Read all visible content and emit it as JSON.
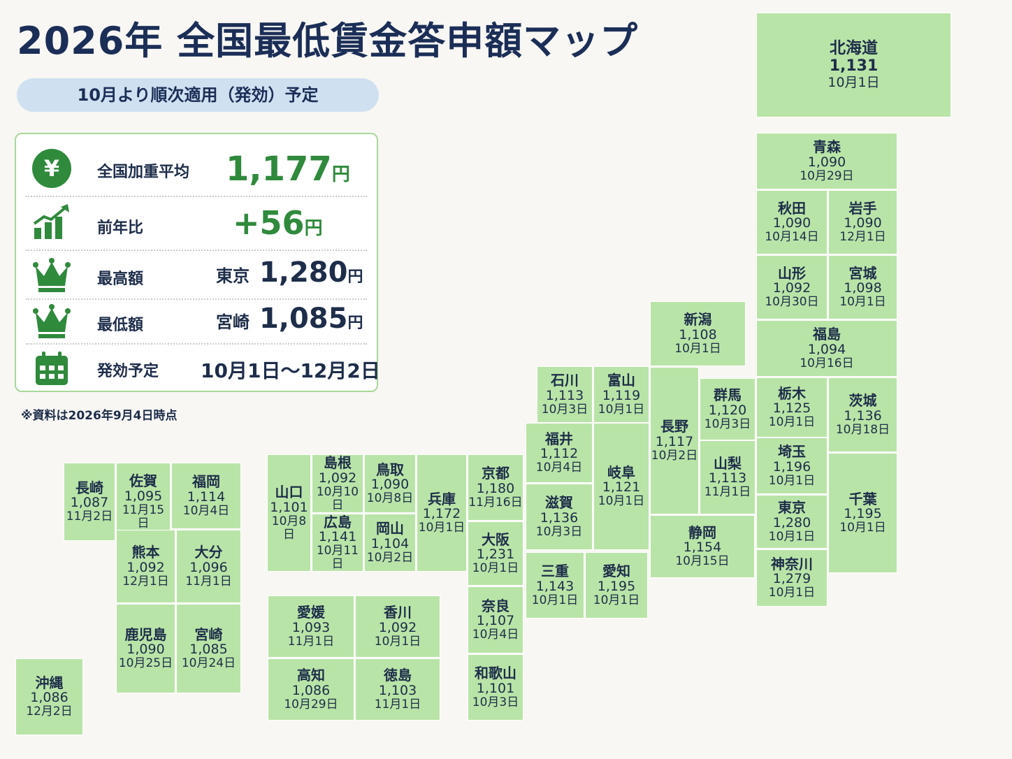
{
  "title": "2026年 全国最低賃金答申額マップ",
  "subtitle": "10月より順次適用（発効）予定",
  "colors": {
    "accent": "#2f8a3c",
    "tile": "#b9e4a7",
    "navy": "#1b2e57",
    "pill": "#cfe1f0"
  },
  "summary": {
    "average": {
      "icon": "yen-icon",
      "label": "全国加重平均",
      "value": "1,177",
      "unit": "円"
    },
    "change": {
      "icon": "growth-chart-icon",
      "label": "前年比",
      "value": "+56",
      "unit": "円"
    },
    "highest": {
      "icon": "crown-icon",
      "label": "最高額",
      "pref": "東京",
      "value": "1,280",
      "unit": "円"
    },
    "lowest": {
      "icon": "crown-icon",
      "label": "最低額",
      "pref": "宮崎",
      "value": "1,085",
      "unit": "円"
    },
    "schedule": {
      "icon": "calendar-icon",
      "label": "発効予定",
      "value": "10月1日～12月2日"
    }
  },
  "note": "※資料は2026年9月4日時点",
  "prefectures": [
    {
      "name": "北海道",
      "wage": "1,131",
      "date": "10月1日"
    },
    {
      "name": "青森",
      "wage": "1,090",
      "date": "10月29日"
    },
    {
      "name": "秋田",
      "wage": "1,090",
      "date": "10月14日"
    },
    {
      "name": "岩手",
      "wage": "1,090",
      "date": "12月1日"
    },
    {
      "name": "山形",
      "wage": "1,092",
      "date": "10月30日"
    },
    {
      "name": "宮城",
      "wage": "1,098",
      "date": "10月1日"
    },
    {
      "name": "新潟",
      "wage": "1,108",
      "date": "10月1日"
    },
    {
      "name": "福島",
      "wage": "1,094",
      "date": "10月16日"
    },
    {
      "name": "石川",
      "wage": "1,113",
      "date": "10月3日"
    },
    {
      "name": "富山",
      "wage": "1,119",
      "date": "10月1日"
    },
    {
      "name": "長野",
      "wage": "1,117",
      "date": "10月2日"
    },
    {
      "name": "群馬",
      "wage": "1,120",
      "date": "10月3日"
    },
    {
      "name": "栃木",
      "wage": "1,125",
      "date": "10月1日"
    },
    {
      "name": "茨城",
      "wage": "1,136",
      "date": "10月18日"
    },
    {
      "name": "福井",
      "wage": "1,112",
      "date": "10月4日"
    },
    {
      "name": "岐阜",
      "wage": "1,121",
      "date": "10月1日"
    },
    {
      "name": "山梨",
      "wage": "1,113",
      "date": "11月1日"
    },
    {
      "name": "埼玉",
      "wage": "1,196",
      "date": "10月1日"
    },
    {
      "name": "千葉",
      "wage": "1,195",
      "date": "10月1日"
    },
    {
      "name": "京都",
      "wage": "1,180",
      "date": "11月16日"
    },
    {
      "name": "滋賀",
      "wage": "1,136",
      "date": "10月3日"
    },
    {
      "name": "東京",
      "wage": "1,280",
      "date": "10月1日"
    },
    {
      "name": "静岡",
      "wage": "1,154",
      "date": "10月15日"
    },
    {
      "name": "神奈川",
      "wage": "1,279",
      "date": "10月1日"
    },
    {
      "name": "大阪",
      "wage": "1,231",
      "date": "10月1日"
    },
    {
      "name": "三重",
      "wage": "1,143",
      "date": "10月1日"
    },
    {
      "name": "愛知",
      "wage": "1,195",
      "date": "10月1日"
    },
    {
      "name": "奈良",
      "wage": "1,107",
      "date": "10月4日"
    },
    {
      "name": "和歌山",
      "wage": "1,101",
      "date": "10月3日"
    },
    {
      "name": "兵庫",
      "wage": "1,172",
      "date": "10月1日"
    },
    {
      "name": "島根",
      "wage": "1,092",
      "date": "10月10日"
    },
    {
      "name": "鳥取",
      "wage": "1,090",
      "date": "10月8日"
    },
    {
      "name": "山口",
      "wage": "1,101",
      "date": "10月8日"
    },
    {
      "name": "広島",
      "wage": "1,141",
      "date": "10月11日"
    },
    {
      "name": "岡山",
      "wage": "1,104",
      "date": "10月2日"
    },
    {
      "name": "愛媛",
      "wage": "1,093",
      "date": "11月1日"
    },
    {
      "name": "香川",
      "wage": "1,092",
      "date": "10月1日"
    },
    {
      "name": "高知",
      "wage": "1,086",
      "date": "10月29日"
    },
    {
      "name": "徳島",
      "wage": "1,103",
      "date": "11月1日"
    },
    {
      "name": "長崎",
      "wage": "1,087",
      "date": "11月2日"
    },
    {
      "name": "佐賀",
      "wage": "1,095",
      "date": "11月15日"
    },
    {
      "name": "福岡",
      "wage": "1,114",
      "date": "10月4日"
    },
    {
      "name": "熊本",
      "wage": "1,092",
      "date": "12月1日"
    },
    {
      "name": "大分",
      "wage": "1,096",
      "date": "11月1日"
    },
    {
      "name": "鹿児島",
      "wage": "1,090",
      "date": "10月25日"
    },
    {
      "name": "宮崎",
      "wage": "1,085",
      "date": "10月24日"
    },
    {
      "name": "沖縄",
      "wage": "1,086",
      "date": "12月2日"
    }
  ]
}
